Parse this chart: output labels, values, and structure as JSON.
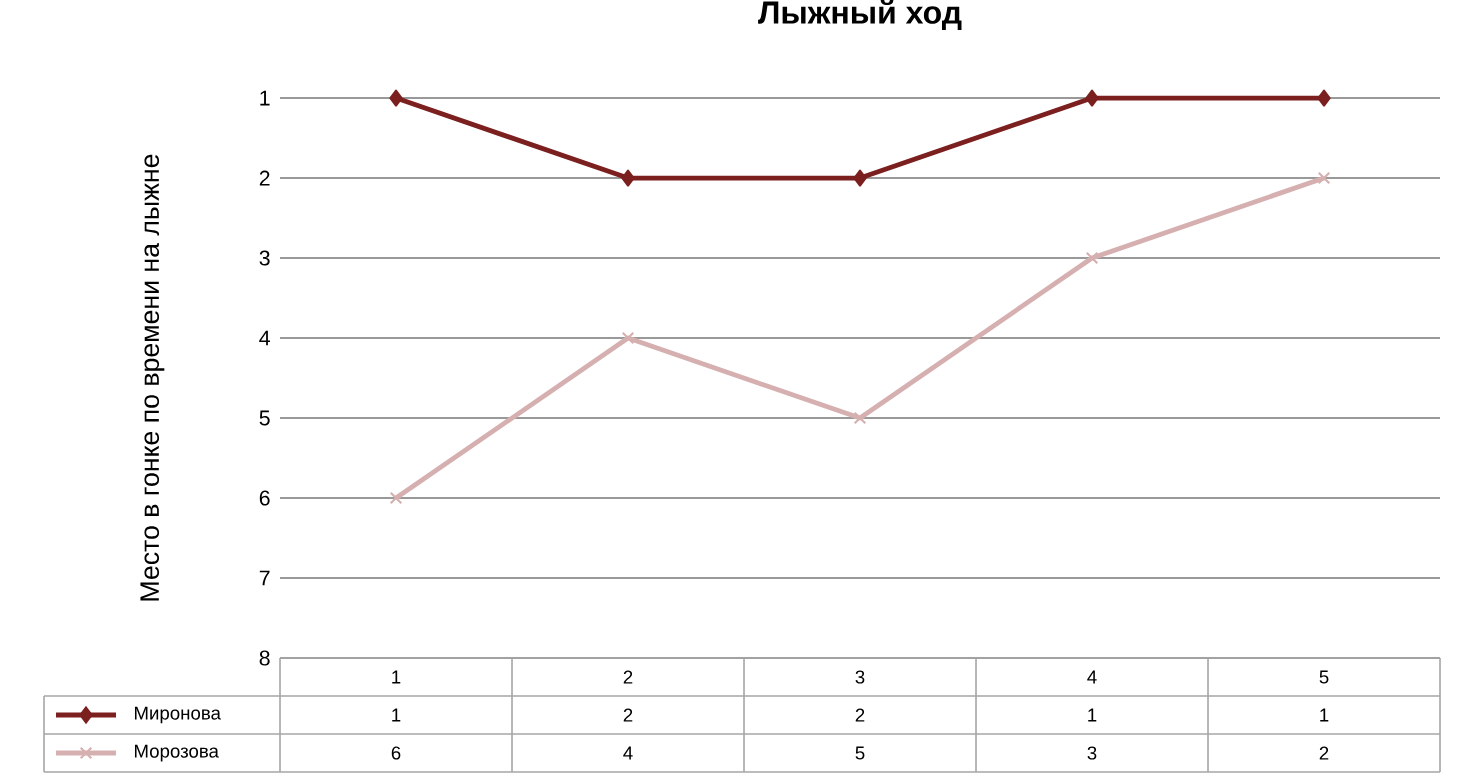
{
  "chart_data": {
    "type": "line",
    "title": "Лыжный ход",
    "ylabel": "Место в гонке по времени на лыжне",
    "categories": [
      "1",
      "2",
      "3",
      "4",
      "5"
    ],
    "series": [
      {
        "name": "Миронова",
        "color": "#7b1f1f",
        "marker": "diamond",
        "values": [
          1,
          2,
          2,
          1,
          1
        ]
      },
      {
        "name": "Морозова",
        "color": "#d6b0b0",
        "marker": "cross",
        "values": [
          6,
          4,
          5,
          3,
          2
        ]
      }
    ],
    "ylim": [
      8,
      1
    ],
    "yticks": [
      1,
      2,
      3,
      4,
      5,
      6,
      7,
      8
    ],
    "grid": "y",
    "legend": "bottom",
    "data_labels": true
  }
}
